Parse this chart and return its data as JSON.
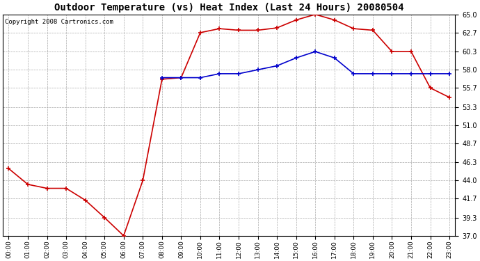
{
  "title": "Outdoor Temperature (vs) Heat Index (Last 24 Hours) 20080504",
  "copyright_text": "Copyright 2008 Cartronics.com",
  "hours": [
    "00:00",
    "01:00",
    "02:00",
    "03:00",
    "04:00",
    "05:00",
    "06:00",
    "07:00",
    "08:00",
    "09:00",
    "10:00",
    "11:00",
    "12:00",
    "13:00",
    "14:00",
    "15:00",
    "16:00",
    "17:00",
    "18:00",
    "19:00",
    "20:00",
    "21:00",
    "22:00",
    "23:00"
  ],
  "outdoor_temp": [
    45.5,
    43.5,
    43.0,
    43.0,
    41.5,
    39.3,
    37.0,
    44.0,
    56.8,
    57.0,
    62.7,
    63.2,
    63.0,
    63.0,
    63.3,
    64.3,
    65.0,
    64.3,
    63.2,
    63.0,
    60.3,
    60.3,
    55.7,
    54.5
  ],
  "heat_index": [
    null,
    null,
    null,
    null,
    null,
    null,
    null,
    null,
    57.0,
    57.0,
    57.0,
    57.5,
    57.5,
    58.0,
    58.5,
    59.5,
    60.3,
    59.5,
    57.5,
    57.5,
    57.5,
    57.5,
    57.5,
    57.5
  ],
  "temp_color": "#cc0000",
  "heat_color": "#0000cc",
  "bg_color": "#ffffff",
  "grid_color": "#aaaaaa",
  "ylim": [
    37.0,
    65.0
  ],
  "yticks": [
    37.0,
    39.3,
    41.7,
    44.0,
    46.3,
    48.7,
    51.0,
    53.3,
    55.7,
    58.0,
    60.3,
    62.7,
    65.0
  ],
  "title_fontsize": 10,
  "copyright_fontsize": 6.5,
  "figwidth": 6.9,
  "figheight": 3.75,
  "dpi": 100
}
